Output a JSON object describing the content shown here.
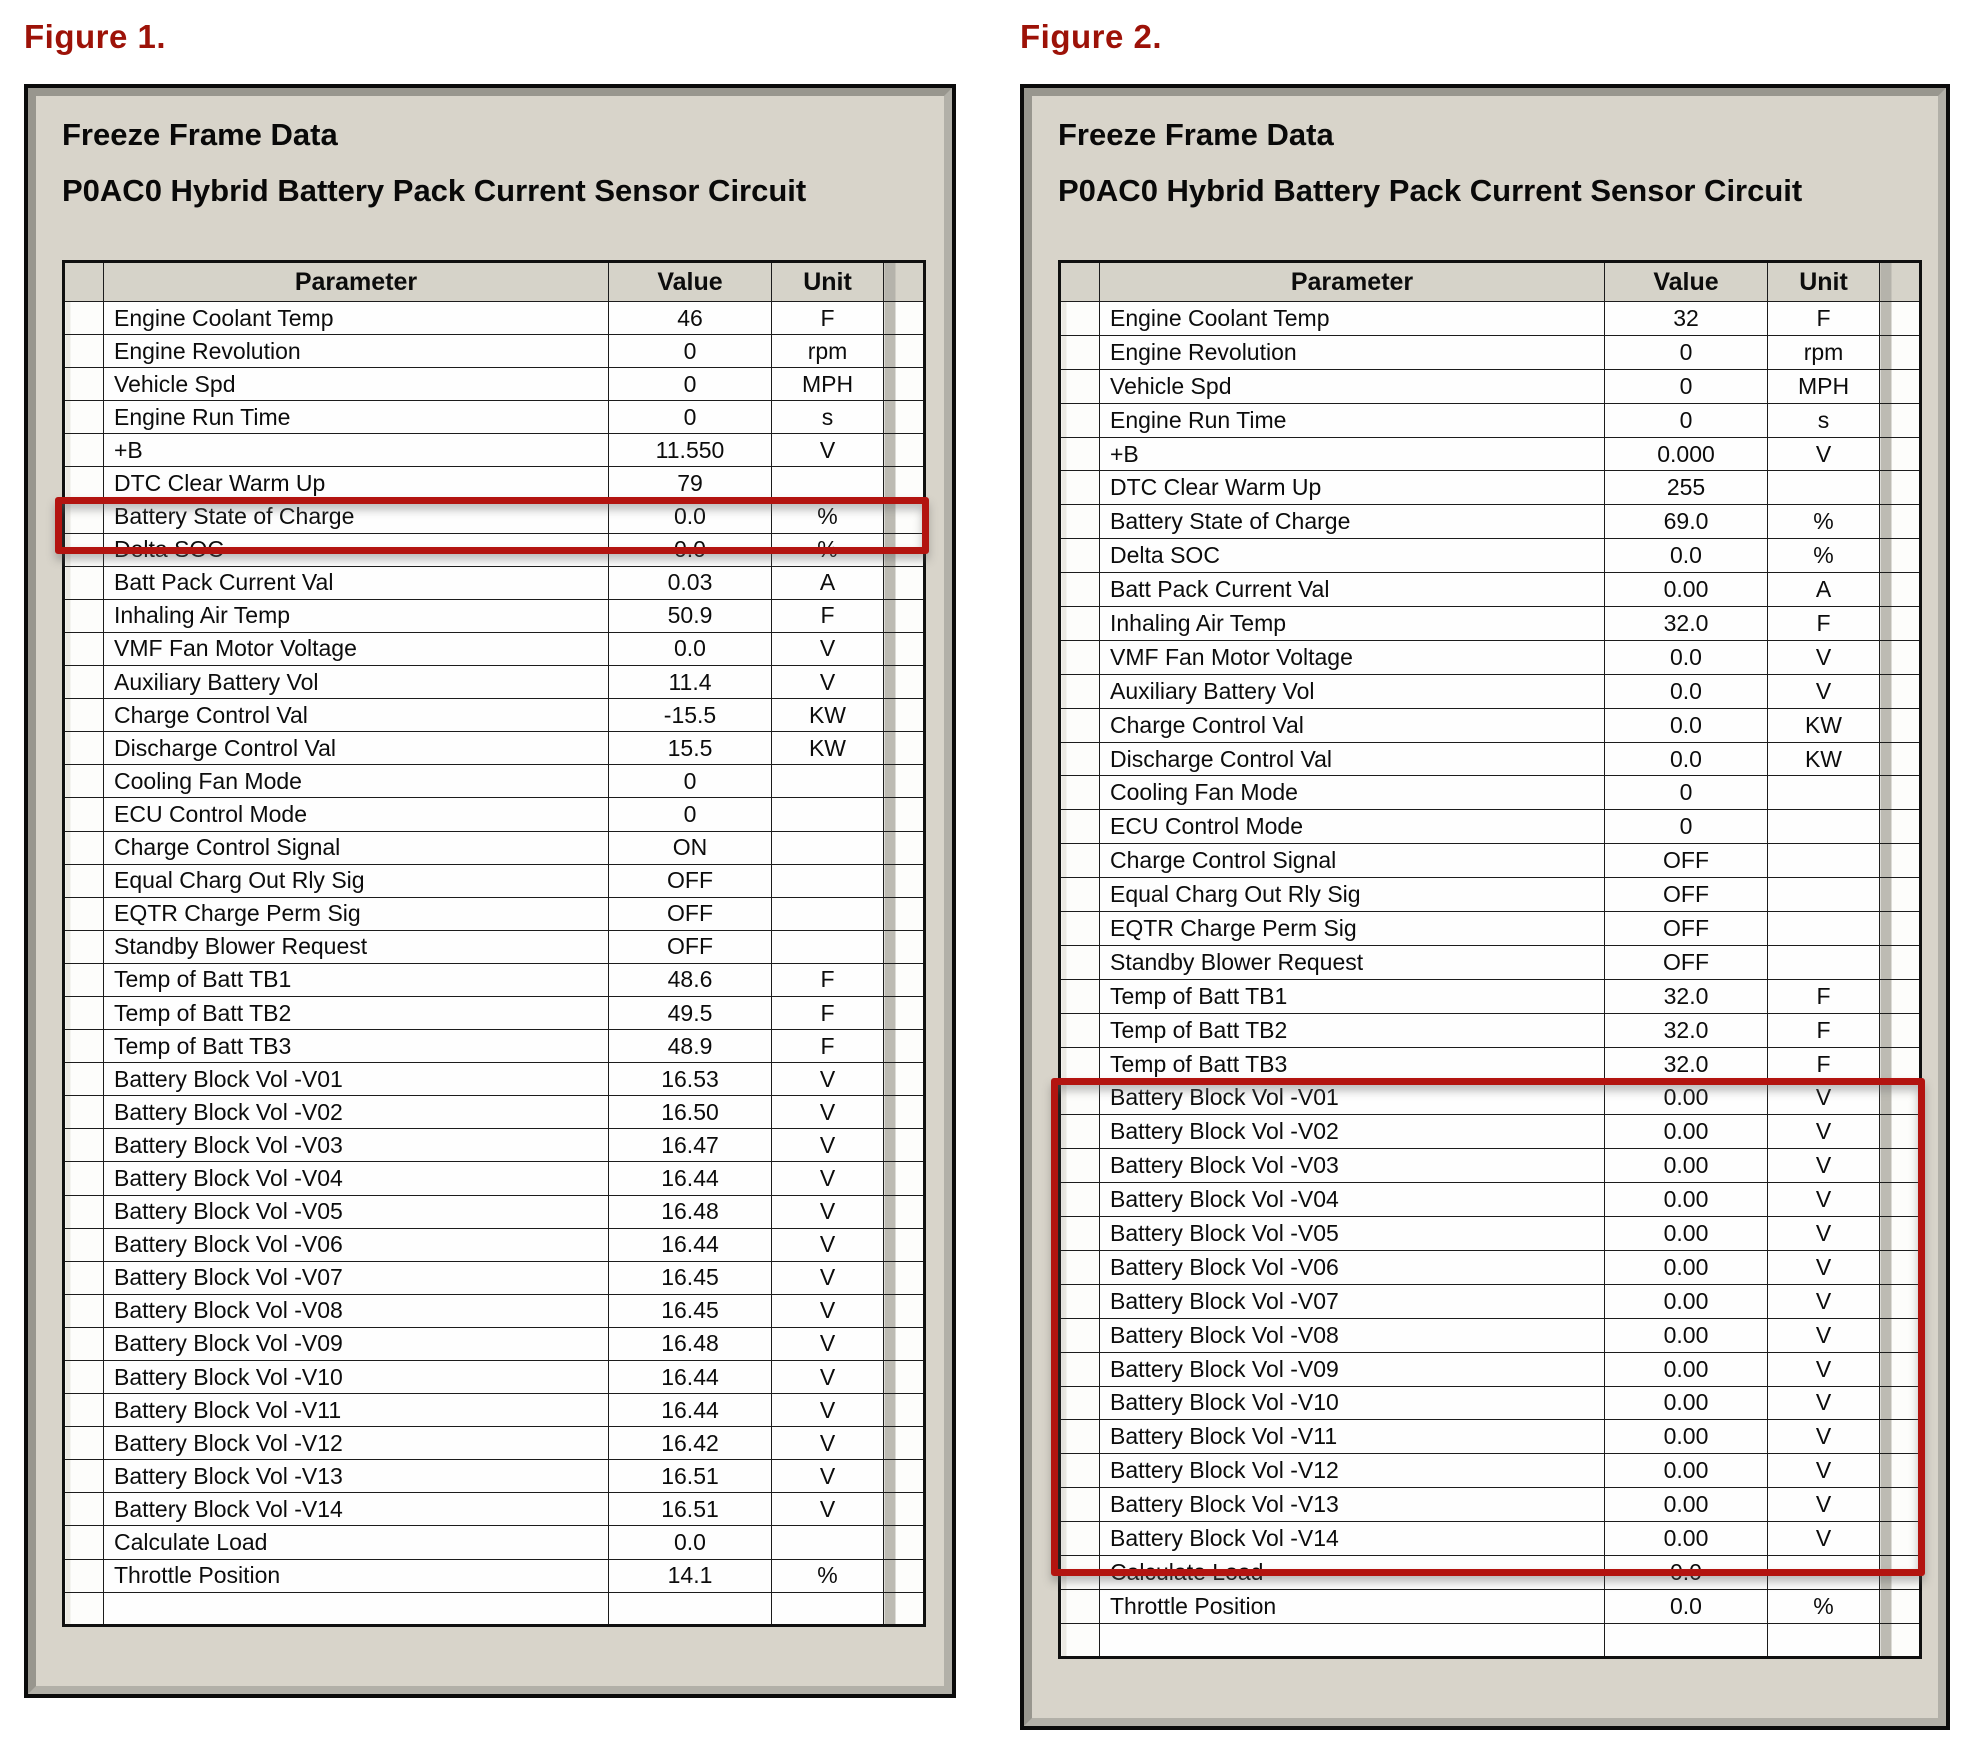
{
  "colors": {
    "figure_label_red": "#9d1208",
    "panel_background": "#d8d4ca",
    "table_header_background": "#d6d3c9",
    "highlight_box_red": "#b31410",
    "grid_line": "#1c1c1c",
    "table_background": "#fefefe"
  },
  "figures": [
    {
      "label": "Figure 1.",
      "title_line1": "Freeze Frame Data",
      "title_line2": "P0AC0 Hybrid Battery Pack Current Sensor Circuit",
      "columns": {
        "parameter": "Parameter",
        "value": "Value",
        "unit": "Unit"
      },
      "highlight": {
        "first_row": 6,
        "last_row": 6
      },
      "rows": [
        {
          "parameter": "Engine Coolant Temp",
          "value": "46",
          "unit": "F"
        },
        {
          "parameter": "Engine Revolution",
          "value": "0",
          "unit": "rpm"
        },
        {
          "parameter": "Vehicle Spd",
          "value": "0",
          "unit": "MPH"
        },
        {
          "parameter": "Engine Run Time",
          "value": "0",
          "unit": "s"
        },
        {
          "parameter": "+B",
          "value": "11.550",
          "unit": "V"
        },
        {
          "parameter": "DTC Clear Warm Up",
          "value": "79",
          "unit": ""
        },
        {
          "parameter": "Battery State of Charge",
          "value": "0.0",
          "unit": "%"
        },
        {
          "parameter": "Delta SOC",
          "value": "0.0",
          "unit": "%"
        },
        {
          "parameter": "Batt Pack Current Val",
          "value": "0.03",
          "unit": "A"
        },
        {
          "parameter": "Inhaling Air Temp",
          "value": "50.9",
          "unit": "F"
        },
        {
          "parameter": "VMF Fan Motor Voltage",
          "value": "0.0",
          "unit": "V"
        },
        {
          "parameter": "Auxiliary Battery Vol",
          "value": "11.4",
          "unit": "V"
        },
        {
          "parameter": "Charge Control Val",
          "value": "-15.5",
          "unit": "KW"
        },
        {
          "parameter": "Discharge Control Val",
          "value": "15.5",
          "unit": "KW"
        },
        {
          "parameter": "Cooling Fan Mode",
          "value": "0",
          "unit": ""
        },
        {
          "parameter": "ECU Control Mode",
          "value": "0",
          "unit": ""
        },
        {
          "parameter": "Charge Control Signal",
          "value": "ON",
          "unit": ""
        },
        {
          "parameter": "Equal Charg Out Rly Sig",
          "value": "OFF",
          "unit": ""
        },
        {
          "parameter": "EQTR Charge Perm Sig",
          "value": "OFF",
          "unit": ""
        },
        {
          "parameter": "Standby Blower Request",
          "value": "OFF",
          "unit": ""
        },
        {
          "parameter": "Temp of Batt TB1",
          "value": "48.6",
          "unit": "F"
        },
        {
          "parameter": "Temp of Batt TB2",
          "value": "49.5",
          "unit": "F"
        },
        {
          "parameter": "Temp of Batt TB3",
          "value": "48.9",
          "unit": "F"
        },
        {
          "parameter": "Battery Block Vol -V01",
          "value": "16.53",
          "unit": "V"
        },
        {
          "parameter": "Battery Block Vol -V02",
          "value": "16.50",
          "unit": "V"
        },
        {
          "parameter": "Battery Block Vol -V03",
          "value": "16.47",
          "unit": "V"
        },
        {
          "parameter": "Battery Block Vol -V04",
          "value": "16.44",
          "unit": "V"
        },
        {
          "parameter": "Battery Block Vol -V05",
          "value": "16.48",
          "unit": "V"
        },
        {
          "parameter": "Battery Block Vol -V06",
          "value": "16.44",
          "unit": "V"
        },
        {
          "parameter": "Battery Block Vol -V07",
          "value": "16.45",
          "unit": "V"
        },
        {
          "parameter": "Battery Block Vol -V08",
          "value": "16.45",
          "unit": "V"
        },
        {
          "parameter": "Battery Block Vol -V09",
          "value": "16.48",
          "unit": "V"
        },
        {
          "parameter": "Battery Block Vol -V10",
          "value": "16.44",
          "unit": "V"
        },
        {
          "parameter": "Battery Block Vol -V11",
          "value": "16.44",
          "unit": "V"
        },
        {
          "parameter": "Battery Block Vol -V12",
          "value": "16.42",
          "unit": "V"
        },
        {
          "parameter": "Battery Block Vol -V13",
          "value": "16.51",
          "unit": "V"
        },
        {
          "parameter": "Battery Block Vol -V14",
          "value": "16.51",
          "unit": "V"
        },
        {
          "parameter": "Calculate Load",
          "value": "0.0",
          "unit": ""
        },
        {
          "parameter": "Throttle Position",
          "value": "14.1",
          "unit": "%"
        },
        {
          "parameter": "",
          "value": "",
          "unit": ""
        }
      ]
    },
    {
      "label": "Figure 2.",
      "title_line1": "Freeze Frame Data",
      "title_line2": "P0AC0 Hybrid Battery Pack Current Sensor Circuit",
      "columns": {
        "parameter": "Parameter",
        "value": "Value",
        "unit": "Unit"
      },
      "highlight": {
        "first_row": 23,
        "last_row": 36
      },
      "rows": [
        {
          "parameter": "Engine Coolant Temp",
          "value": "32",
          "unit": "F"
        },
        {
          "parameter": "Engine Revolution",
          "value": "0",
          "unit": "rpm"
        },
        {
          "parameter": "Vehicle Spd",
          "value": "0",
          "unit": "MPH"
        },
        {
          "parameter": "Engine Run Time",
          "value": "0",
          "unit": "s"
        },
        {
          "parameter": "+B",
          "value": "0.000",
          "unit": "V"
        },
        {
          "parameter": "DTC Clear Warm Up",
          "value": "255",
          "unit": ""
        },
        {
          "parameter": "Battery State of Charge",
          "value": "69.0",
          "unit": "%"
        },
        {
          "parameter": "Delta SOC",
          "value": "0.0",
          "unit": "%"
        },
        {
          "parameter": "Batt Pack Current Val",
          "value": "0.00",
          "unit": "A"
        },
        {
          "parameter": "Inhaling Air Temp",
          "value": "32.0",
          "unit": "F"
        },
        {
          "parameter": "VMF Fan Motor Voltage",
          "value": "0.0",
          "unit": "V"
        },
        {
          "parameter": "Auxiliary Battery Vol",
          "value": "0.0",
          "unit": "V"
        },
        {
          "parameter": "Charge Control Val",
          "value": "0.0",
          "unit": "KW"
        },
        {
          "parameter": "Discharge Control Val",
          "value": "0.0",
          "unit": "KW"
        },
        {
          "parameter": "Cooling Fan Mode",
          "value": "0",
          "unit": ""
        },
        {
          "parameter": "ECU Control Mode",
          "value": "0",
          "unit": ""
        },
        {
          "parameter": "Charge Control Signal",
          "value": "OFF",
          "unit": ""
        },
        {
          "parameter": "Equal Charg Out Rly Sig",
          "value": "OFF",
          "unit": ""
        },
        {
          "parameter": "EQTR Charge Perm Sig",
          "value": "OFF",
          "unit": ""
        },
        {
          "parameter": "Standby Blower Request",
          "value": "OFF",
          "unit": ""
        },
        {
          "parameter": "Temp of Batt TB1",
          "value": "32.0",
          "unit": "F"
        },
        {
          "parameter": "Temp of Batt TB2",
          "value": "32.0",
          "unit": "F"
        },
        {
          "parameter": "Temp of Batt TB3",
          "value": "32.0",
          "unit": "F"
        },
        {
          "parameter": "Battery Block Vol -V01",
          "value": "0.00",
          "unit": "V"
        },
        {
          "parameter": "Battery Block Vol -V02",
          "value": "0.00",
          "unit": "V"
        },
        {
          "parameter": "Battery Block Vol -V03",
          "value": "0.00",
          "unit": "V"
        },
        {
          "parameter": "Battery Block Vol -V04",
          "value": "0.00",
          "unit": "V"
        },
        {
          "parameter": "Battery Block Vol -V05",
          "value": "0.00",
          "unit": "V"
        },
        {
          "parameter": "Battery Block Vol -V06",
          "value": "0.00",
          "unit": "V"
        },
        {
          "parameter": "Battery Block Vol -V07",
          "value": "0.00",
          "unit": "V"
        },
        {
          "parameter": "Battery Block Vol -V08",
          "value": "0.00",
          "unit": "V"
        },
        {
          "parameter": "Battery Block Vol -V09",
          "value": "0.00",
          "unit": "V"
        },
        {
          "parameter": "Battery Block Vol -V10",
          "value": "0.00",
          "unit": "V"
        },
        {
          "parameter": "Battery Block Vol -V11",
          "value": "0.00",
          "unit": "V"
        },
        {
          "parameter": "Battery Block Vol -V12",
          "value": "0.00",
          "unit": "V"
        },
        {
          "parameter": "Battery Block Vol -V13",
          "value": "0.00",
          "unit": "V"
        },
        {
          "parameter": "Battery Block Vol -V14",
          "value": "0.00",
          "unit": "V"
        },
        {
          "parameter": "Calculate Load",
          "value": "0.0",
          "unit": ""
        },
        {
          "parameter": "Throttle Position",
          "value": "0.0",
          "unit": "%"
        },
        {
          "parameter": "",
          "value": "",
          "unit": ""
        }
      ]
    }
  ]
}
